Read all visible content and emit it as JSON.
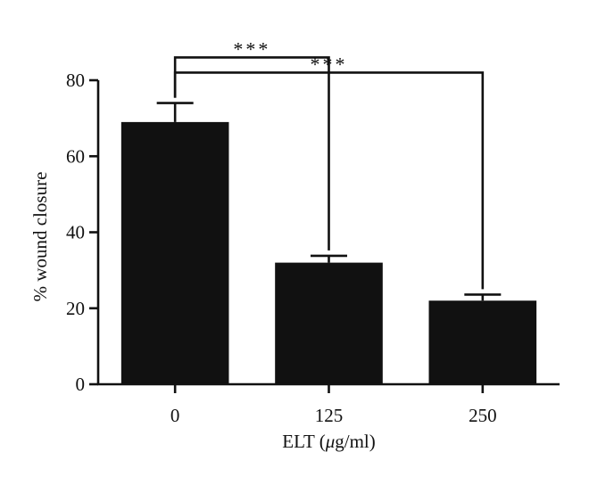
{
  "chart_data": {
    "type": "bar",
    "categories": [
      "0",
      "125",
      "250"
    ],
    "values": [
      69,
      32,
      22
    ],
    "errors": [
      5,
      1.8,
      1.6
    ],
    "xlabel": "ELT (",
    "xlabel_italic": "μ",
    "xlabel_suffix": "g/ml)",
    "ylabel": "% wound closure",
    "ylim": [
      0,
      80
    ],
    "yticks": [
      0,
      20,
      40,
      60,
      80
    ],
    "grid": false,
    "bar_color": "#111111",
    "significance": [
      {
        "from": 0,
        "to": 1,
        "label": "***",
        "level": 86
      },
      {
        "from": 0,
        "to": 2,
        "label": "***",
        "level": 82
      }
    ]
  }
}
